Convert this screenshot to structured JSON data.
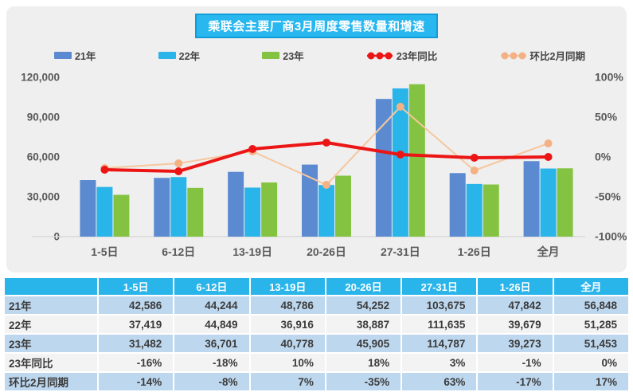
{
  "chart_data": {
    "type": "bar",
    "subtype": "combo-bar-line",
    "title": "乘联会主要厂商3月周度零售数量和增速",
    "categories": [
      "1-5日",
      "6-12日",
      "13-19日",
      "20-26日",
      "27-31日",
      "1-26日",
      "全月"
    ],
    "series": [
      {
        "name": "21年",
        "kind": "bar",
        "color": "#5b8ad0",
        "values": [
          42586,
          44244,
          48786,
          54252,
          103675,
          47842,
          56848
        ]
      },
      {
        "name": "22年",
        "kind": "bar",
        "color": "#29b4ea",
        "values": [
          37419,
          44849,
          36916,
          38887,
          111635,
          39679,
          51285
        ]
      },
      {
        "name": "23年",
        "kind": "bar",
        "color": "#84c341",
        "values": [
          31482,
          36701,
          40778,
          45905,
          114787,
          39273,
          51453
        ]
      },
      {
        "name": "23年同比",
        "kind": "line",
        "color": "#ec1515",
        "marker_color": "#ec1515",
        "values_pct": [
          -16,
          -18,
          10,
          18,
          3,
          -1,
          0
        ]
      },
      {
        "name": "环比2月同期",
        "kind": "line",
        "color": "#f6c79d",
        "marker_color": "#f4b183",
        "values_pct": [
          -14,
          -8,
          7,
          -35,
          63,
          -17,
          17
        ]
      }
    ],
    "left_axis": {
      "min": 0,
      "max": 120000,
      "step": 30000,
      "tick_labels": [
        "0",
        "30,000",
        "60,000",
        "90,000",
        "120,000"
      ]
    },
    "right_axis": {
      "min": -100,
      "max": 100,
      "step": 50,
      "tick_labels": [
        "-100%",
        "-50%",
        "0%",
        "50%",
        "100%"
      ]
    },
    "legend_position": "top",
    "grid": false
  },
  "table": {
    "columns": [
      "",
      "1-5日",
      "6-12日",
      "13-19日",
      "20-26日",
      "27-31日",
      "1-26日",
      "全月"
    ],
    "rows": [
      {
        "label": "21年",
        "values": [
          "42,586",
          "44,244",
          "48,786",
          "54,252",
          "103,675",
          "47,842",
          "56,848"
        ]
      },
      {
        "label": "22年",
        "values": [
          "37,419",
          "44,849",
          "36,916",
          "38,887",
          "111,635",
          "39,679",
          "51,285"
        ]
      },
      {
        "label": "23年",
        "values": [
          "31,482",
          "36,701",
          "40,778",
          "45,905",
          "114,787",
          "39,273",
          "51,453"
        ]
      },
      {
        "label": "23年同比",
        "values": [
          "-16%",
          "-18%",
          "10%",
          "18%",
          "3%",
          "-1%",
          "0%"
        ]
      },
      {
        "label": "环比2月同期",
        "values": [
          "-14%",
          "-8%",
          "7%",
          "-35%",
          "63%",
          "-17%",
          "17%"
        ]
      }
    ]
  },
  "colors": {
    "panel_bg": "#efeff0",
    "title_bg": "#29b7ef",
    "title_border": "#119bd9",
    "table_header_bg": "#29b4ea",
    "row_blue": "#bdd7ee",
    "row_light": "#f3f3f3",
    "axis_text": "#595959",
    "baseline": "#d8d8d8"
  }
}
